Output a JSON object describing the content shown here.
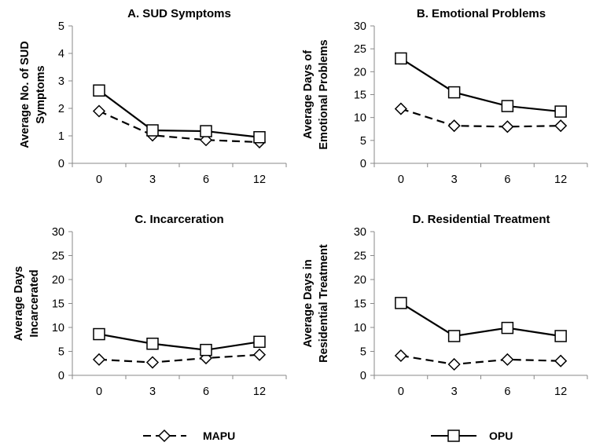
{
  "chart_data": [
    {
      "type": "line",
      "title": "A. SUD Symptoms",
      "ylabel": "Average No. of SUD Symptoms",
      "ylabel_lines": [
        "Average No. of SUD",
        "Symptoms"
      ],
      "xlabel": "",
      "categories": [
        "0",
        "3",
        "6",
        "12"
      ],
      "ylim": [
        0,
        5
      ],
      "yticks": [
        0,
        1,
        2,
        3,
        4,
        5
      ],
      "grid": false,
      "series": [
        {
          "name": "MAPU",
          "values": [
            1.9,
            1.02,
            0.85,
            0.77
          ]
        },
        {
          "name": "OPU",
          "values": [
            2.65,
            1.2,
            1.17,
            0.95
          ]
        }
      ]
    },
    {
      "type": "line",
      "title": "B. Emotional Problems",
      "ylabel": "Average Days of Emotional Problems",
      "ylabel_lines": [
        "Average Days of",
        "Emotional Problems"
      ],
      "xlabel": "",
      "categories": [
        "0",
        "3",
        "6",
        "12"
      ],
      "ylim": [
        0,
        30
      ],
      "yticks": [
        0,
        5,
        10,
        15,
        20,
        25,
        30
      ],
      "grid": false,
      "series": [
        {
          "name": "MAPU",
          "values": [
            11.9,
            8.2,
            8.0,
            8.2
          ]
        },
        {
          "name": "OPU",
          "values": [
            22.9,
            15.5,
            12.5,
            11.3
          ]
        }
      ]
    },
    {
      "type": "line",
      "title": "C. Incarceration",
      "ylabel": "Average Days Incarcerated",
      "ylabel_lines": [
        "Average Days",
        "Incarcerated"
      ],
      "xlabel": "",
      "categories": [
        "0",
        "3",
        "6",
        "12"
      ],
      "ylim": [
        0,
        30
      ],
      "yticks": [
        0,
        5,
        10,
        15,
        20,
        25,
        30
      ],
      "grid": false,
      "series": [
        {
          "name": "MAPU",
          "values": [
            3.3,
            2.7,
            3.6,
            4.3
          ]
        },
        {
          "name": "OPU",
          "values": [
            8.6,
            6.6,
            5.3,
            7.0
          ]
        }
      ]
    },
    {
      "type": "line",
      "title": "D. Residential Treatment",
      "ylabel": "Average Days in Residential Treatment",
      "ylabel_lines": [
        "Average Days in",
        "Residential Treatment"
      ],
      "xlabel": "",
      "categories": [
        "0",
        "3",
        "6",
        "12"
      ],
      "ylim": [
        0,
        30
      ],
      "yticks": [
        0,
        5,
        10,
        15,
        20,
        25,
        30
      ],
      "grid": false,
      "series": [
        {
          "name": "MAPU",
          "values": [
            4.1,
            2.3,
            3.3,
            3.0
          ]
        },
        {
          "name": "OPU",
          "values": [
            15.1,
            8.2,
            9.9,
            8.2
          ]
        }
      ]
    }
  ],
  "legend": {
    "placement": "bottom",
    "entries": [
      {
        "label": "MAPU",
        "line": "dashed",
        "marker": "diamond-icon"
      },
      {
        "label": "OPU",
        "line": "solid",
        "marker": "square-icon"
      }
    ]
  },
  "colors": {
    "line": "#000000",
    "axis": "#888888",
    "background": "#ffffff",
    "marker_fill": "#ffffff"
  }
}
